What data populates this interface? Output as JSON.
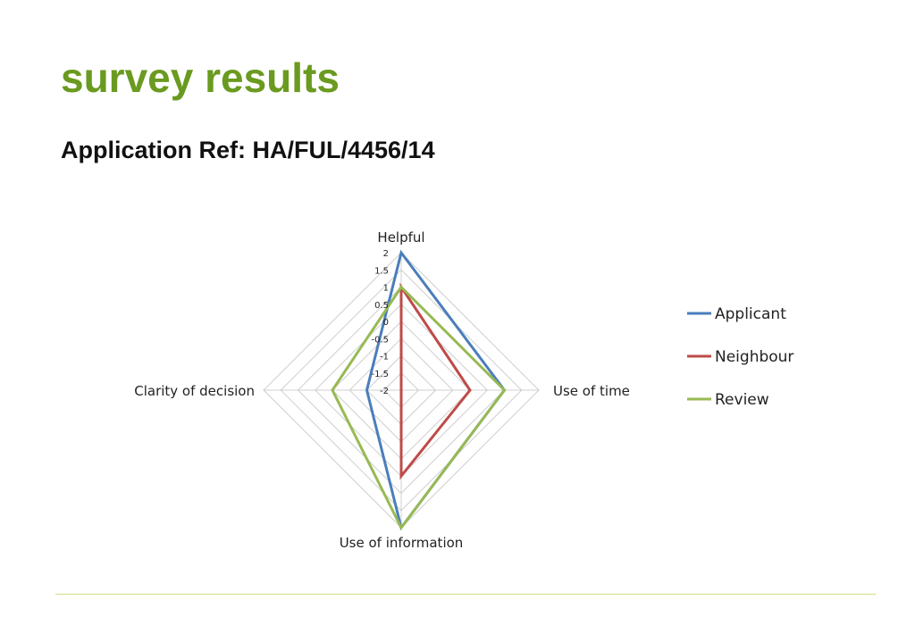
{
  "slide": {
    "title": "survey results",
    "subtitle": "Application Ref: HA/FUL/4456/14"
  },
  "chart_data": {
    "type": "radar",
    "axes": [
      "Helpful",
      "Use of time",
      "Use of information",
      "Clarity of decision"
    ],
    "r_ticks": [
      2,
      1.5,
      1,
      0.5,
      0,
      -0.5,
      -1,
      -1.5,
      -2
    ],
    "r_tick_labels": [
      "2",
      "1.5",
      "1",
      "0.5",
      "0",
      "-0.5",
      "-1",
      "-1.5",
      "-2"
    ],
    "rlim": [
      -2,
      2
    ],
    "grid": true,
    "legend": "right",
    "series": [
      {
        "name": "Applicant",
        "color": "#4a7ebb",
        "values": [
          2,
          1,
          2,
          -1
        ]
      },
      {
        "name": "Neighbour",
        "color": "#be4b48",
        "values": [
          1,
          0,
          0.5,
          -2
        ]
      },
      {
        "name": "Review",
        "color": "#98b954",
        "values": [
          1,
          1,
          2,
          0
        ]
      }
    ]
  }
}
